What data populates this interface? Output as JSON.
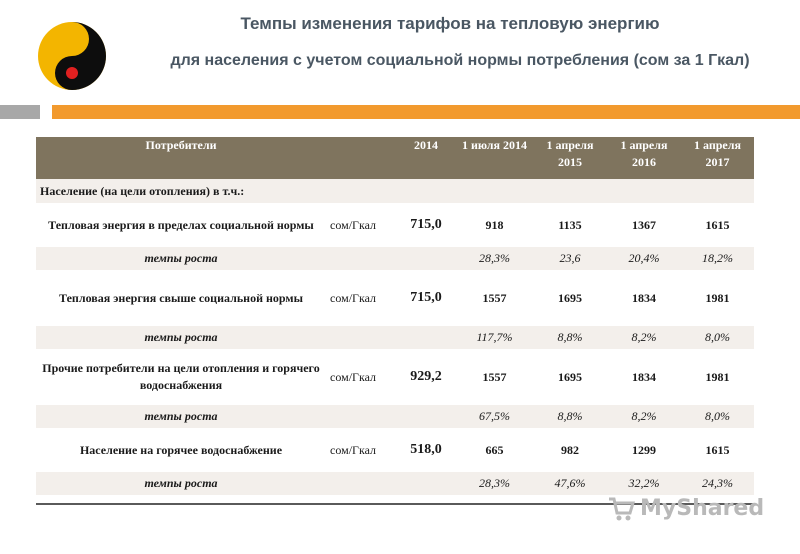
{
  "header": {
    "title_line1": "Темпы изменения тарифов на тепловую энергию",
    "title_line2": "для населения с учетом социальной нормы потребления  (сом за 1 Гкал)"
  },
  "colors": {
    "accent_orange": "#f29a2e",
    "header_bg": "#7f745e",
    "band_bg": "#f3efeb",
    "title_text": "#4a5763"
  },
  "logo": {
    "icon": "yin-yang-logo-icon"
  },
  "table": {
    "columns": [
      "Потребители",
      "",
      "2014",
      "1 июля 2014",
      "1 апреля 2015",
      "1 апреля 2016",
      "1 апреля 2017"
    ],
    "section_label": "Население  (на цели отопления) в т.ч.:",
    "rows": [
      {
        "name": "Тепловая энергия в пределах социальной нормы",
        "unit": "сом/Гкал",
        "base": "715,0",
        "values": [
          "918",
          "1135",
          "1367",
          "1615"
        ],
        "rate_label": "темпы роста",
        "rates": [
          "28,3%",
          "23,6",
          "20,4%",
          "18,2%"
        ]
      },
      {
        "name": "Тепловая энергия свыше социальной нормы",
        "unit": "сом/Гкал",
        "base": "715,0",
        "values": [
          "1557",
          "1695",
          "1834",
          "1981"
        ],
        "rate_label": "темпы роста",
        "rates": [
          "117,7%",
          "8,8%",
          "8,2%",
          "8,0%"
        ]
      },
      {
        "name": "Прочие потребители на цели отопления и горячего водоснабжения",
        "unit": "сом/Гкал",
        "base": "929,2",
        "values": [
          "1557",
          "1695",
          "1834",
          "1981"
        ],
        "rate_label": "темпы роста",
        "rates": [
          "67,5%",
          "8,8%",
          "8,2%",
          "8,0%"
        ]
      },
      {
        "name": "Население на горячее водоснабжение",
        "unit": "сом/Гкал",
        "base": "518,0",
        "values": [
          "665",
          "982",
          "1299",
          "1615"
        ],
        "rate_label": "темпы роста",
        "rates": [
          "28,3%",
          "47,6%",
          "32,2%",
          "24,3%"
        ]
      }
    ]
  },
  "watermark": {
    "text": "MyShared",
    "icon": "cart-icon"
  }
}
